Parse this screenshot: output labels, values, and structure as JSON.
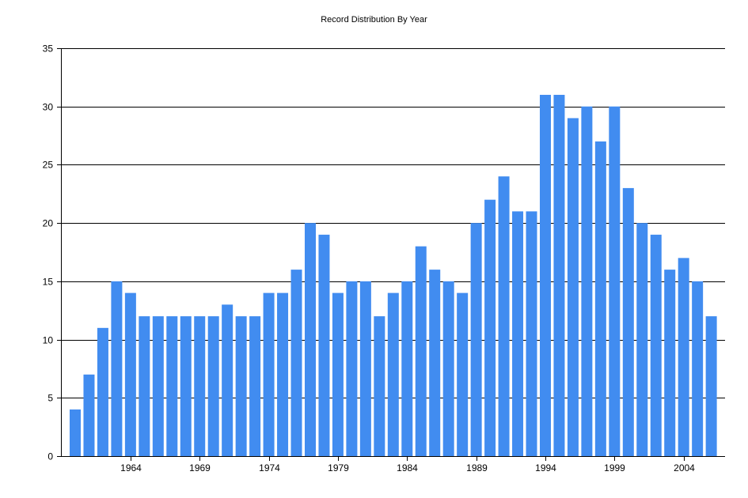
{
  "chart_data": {
    "type": "bar",
    "title": "Record Distribution By Year",
    "xlabel": "",
    "ylabel": "",
    "ylim": [
      0,
      35
    ],
    "yticks": [
      0,
      5,
      10,
      15,
      20,
      25,
      30,
      35
    ],
    "xtick_labels": [
      "1964",
      "1969",
      "1974",
      "1979",
      "1984",
      "1989",
      "1994",
      "1999",
      "2004"
    ],
    "grid": "horizontal",
    "bar_color": "#418CF0",
    "categories": [
      1960,
      1961,
      1962,
      1963,
      1964,
      1965,
      1966,
      1967,
      1968,
      1969,
      1970,
      1971,
      1972,
      1973,
      1974,
      1975,
      1976,
      1977,
      1978,
      1979,
      1980,
      1981,
      1982,
      1983,
      1984,
      1985,
      1986,
      1987,
      1988,
      1989,
      1990,
      1991,
      1992,
      1993,
      1994,
      1995,
      1996,
      1997,
      1998,
      1999,
      2000,
      2001,
      2002,
      2003,
      2004,
      2005,
      2006
    ],
    "values": [
      4,
      7,
      11,
      15,
      14,
      12,
      12,
      12,
      12,
      12,
      12,
      13,
      12,
      12,
      14,
      14,
      16,
      20,
      19,
      14,
      15,
      15,
      12,
      14,
      15,
      18,
      16,
      15,
      14,
      20,
      22,
      24,
      21,
      21,
      31,
      31,
      29,
      30,
      27,
      30,
      23,
      20,
      19,
      16,
      17,
      15,
      12
    ]
  }
}
